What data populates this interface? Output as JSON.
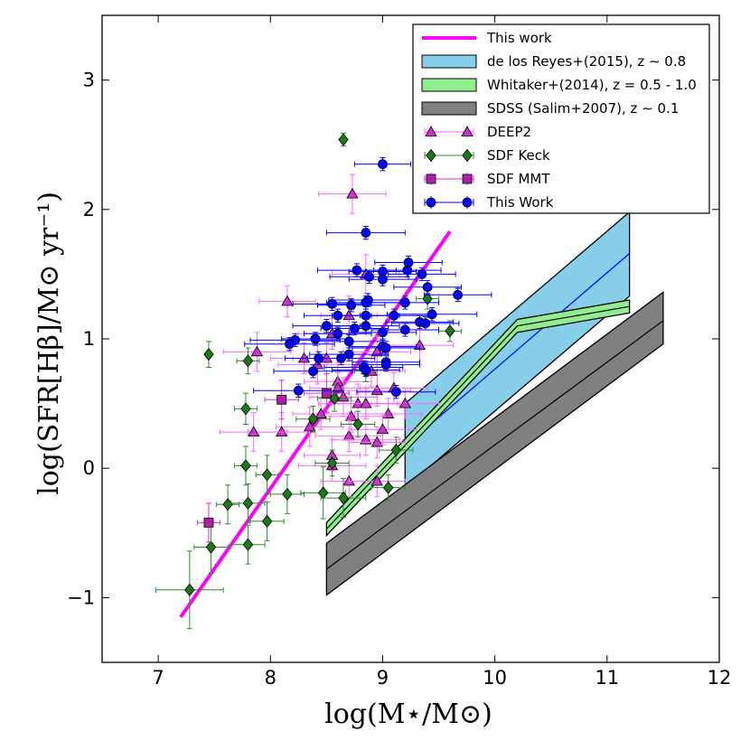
{
  "chart_data": {
    "type": "scatter",
    "xlabel": "log(M⋆/M⊙)",
    "ylabel": "log(SFR[Hβ]/M⊙ yr⁻¹)",
    "xlim": [
      6.5,
      12
    ],
    "ylim": [
      -1.5,
      3.5
    ],
    "x_ticks": [
      7,
      8,
      9,
      10,
      11,
      12
    ],
    "y_ticks": [
      -1,
      0,
      1,
      2,
      3
    ],
    "x_tick_labels": [
      "7",
      "8",
      "9",
      "10",
      "11",
      "12"
    ],
    "y_tick_labels": [
      "−1",
      "0",
      "1",
      "2",
      "3"
    ],
    "grid": false,
    "legend_position": "top-right",
    "colors": {
      "this_work_line": "#ff00ff",
      "reyes": "#87ceeb",
      "whitaker": "#90ee90",
      "sdss": "#808080",
      "deep2": "#cc33cc",
      "sdf_keck": "#1a7a1a",
      "sdf_mmt": "#aa22aa",
      "this_work_points": "#0000ff"
    },
    "legend": [
      {
        "label": "This work",
        "kind": "line",
        "color": "#ff00ff"
      },
      {
        "label": "de los Reyes+(2015), z ∼ 0.8",
        "kind": "band",
        "color": "#87ceeb"
      },
      {
        "label": "Whitaker+(2014), z = 0.5 - 1.0",
        "kind": "band",
        "color": "#90ee90"
      },
      {
        "label": "SDSS (Salim+2007), z ∼ 0.1",
        "kind": "band",
        "color": "#808080"
      },
      {
        "label": "DEEP2",
        "kind": "marker",
        "marker": "triangle",
        "color": "#cc33cc",
        "ecolor": "#ff66ff"
      },
      {
        "label": "SDF Keck",
        "kind": "marker",
        "marker": "diamond",
        "color": "#1a7a1a",
        "ecolor": "#2e8b2e"
      },
      {
        "label": "SDF MMT",
        "kind": "marker",
        "marker": "square",
        "color": "#aa22aa",
        "ecolor": "#cc33cc"
      },
      {
        "label": "This Work",
        "kind": "marker",
        "marker": "circle",
        "color": "#0000ff",
        "ecolor": "#0000ff"
      }
    ],
    "fit_line": {
      "name": "This work",
      "x": [
        7.2,
        9.6
      ],
      "y": [
        -1.15,
        1.83
      ]
    },
    "bands": [
      {
        "name": "de los Reyes+(2015), z ∼ 0.8",
        "color": "#87ceeb",
        "x": [
          9.2,
          11.2
        ],
        "lower": [
          -0.15,
          1.33
        ],
        "upper": [
          0.5,
          1.98
        ],
        "center": [
          0.17,
          1.66
        ]
      },
      {
        "name": "Whitaker+(2014), z = 0.5 - 1.0",
        "color": "#90ee90",
        "x": [
          8.5,
          10.2,
          11.2
        ],
        "lower": [
          -0.52,
          1.05,
          1.2
        ],
        "upper": [
          -0.42,
          1.15,
          1.3
        ],
        "center": [
          -0.47,
          1.1,
          1.25
        ]
      },
      {
        "name": "SDSS (Salim+2007), z ∼ 0.1",
        "color": "#808080",
        "x": [
          8.5,
          11.5
        ],
        "lower": [
          -0.98,
          0.96
        ],
        "upper": [
          -0.58,
          1.36
        ],
        "center": [
          -0.78,
          1.14
        ]
      }
    ],
    "series": [
      {
        "name": "DEEP2",
        "marker": "triangle",
        "color": "#cc33cc",
        "ecolor": "#ff66ff",
        "points": [
          [
            8.73,
            2.12,
            0.3,
            0.15
          ],
          [
            8.15,
            1.29,
            0.25,
            0.12
          ],
          [
            8.55,
            1.04,
            0.3,
            0.12
          ],
          [
            8.7,
            1.18,
            0.25,
            0.15
          ],
          [
            7.88,
            0.9,
            0.3,
            0.15
          ],
          [
            8.42,
            0.8,
            0.35,
            0.15
          ],
          [
            8.6,
            0.67,
            0.3,
            0.15
          ],
          [
            8.65,
            0.55,
            0.3,
            0.15
          ],
          [
            8.78,
            0.5,
            0.35,
            0.15
          ],
          [
            8.85,
            0.5,
            0.3,
            0.12
          ],
          [
            8.95,
            0.6,
            0.3,
            0.12
          ],
          [
            9.1,
            0.62,
            0.3,
            0.12
          ],
          [
            9.2,
            0.5,
            0.3,
            0.12
          ],
          [
            9.33,
            0.95,
            0.3,
            0.15
          ],
          [
            9.05,
            0.42,
            0.3,
            0.12
          ],
          [
            8.72,
            0.4,
            0.3,
            0.12
          ],
          [
            8.7,
            0.25,
            0.3,
            0.12
          ],
          [
            8.85,
            0.22,
            0.3,
            0.12
          ],
          [
            8.95,
            0.2,
            0.25,
            0.12
          ],
          [
            8.55,
            0.02,
            0.3,
            0.12
          ],
          [
            8.35,
            0.32,
            0.3,
            0.15
          ],
          [
            8.1,
            0.28,
            0.3,
            0.15
          ],
          [
            7.85,
            0.28,
            0.3,
            0.15
          ],
          [
            8.55,
            0.1,
            0.25,
            0.12
          ],
          [
            8.7,
            -0.1,
            0.25,
            0.12
          ],
          [
            8.95,
            -0.1,
            0.25,
            0.12
          ],
          [
            8.85,
            1.5,
            0.3,
            0.15
          ],
          [
            8.9,
            0.75,
            0.3,
            0.12
          ],
          [
            8.5,
            0.85,
            0.3,
            0.12
          ],
          [
            8.95,
            0.9,
            0.3,
            0.12
          ],
          [
            8.6,
            0.62,
            0.25,
            0.12
          ],
          [
            8.45,
            0.42,
            0.25,
            0.12
          ],
          [
            9.0,
            0.3,
            0.3,
            0.12
          ],
          [
            8.3,
            0.85,
            0.3,
            0.12
          ]
        ]
      },
      {
        "name": "SDF Keck",
        "marker": "diamond",
        "color": "#1a7a1a",
        "ecolor": "#2e8b2e",
        "points": [
          [
            8.65,
            2.54,
            0.0,
            0.05
          ],
          [
            7.45,
            0.88,
            0.0,
            0.1
          ],
          [
            7.8,
            0.83,
            0.1,
            0.1
          ],
          [
            7.78,
            0.46,
            0.1,
            0.12
          ],
          [
            7.78,
            0.02,
            0.1,
            0.15
          ],
          [
            7.62,
            -0.28,
            0.1,
            0.15
          ],
          [
            7.8,
            -0.27,
            0.15,
            0.15
          ],
          [
            7.97,
            -0.05,
            0.1,
            0.15
          ],
          [
            8.15,
            -0.2,
            0.15,
            0.15
          ],
          [
            7.97,
            -0.41,
            0.15,
            0.15
          ],
          [
            7.8,
            -0.59,
            0.15,
            0.15
          ],
          [
            7.47,
            -0.61,
            0.15,
            0.2
          ],
          [
            7.28,
            -0.94,
            0.3,
            0.3
          ],
          [
            8.47,
            -0.19,
            0.2,
            0.2
          ],
          [
            8.65,
            -0.23,
            0.2,
            0.15
          ],
          [
            8.55,
            0.04,
            0.15,
            0.1
          ],
          [
            8.38,
            0.38,
            0.15,
            0.1
          ],
          [
            8.57,
            0.54,
            0.15,
            0.1
          ],
          [
            8.78,
            0.34,
            0.15,
            0.1
          ],
          [
            8.85,
            0.75,
            0.1,
            0.08
          ],
          [
            9.12,
            0.14,
            0.15,
            0.1
          ],
          [
            9.05,
            -0.15,
            0.15,
            0.1
          ],
          [
            9.4,
            1.31,
            0.1,
            0.08
          ],
          [
            9.6,
            1.06,
            0.1,
            0.08
          ]
        ]
      },
      {
        "name": "SDF MMT",
        "marker": "square",
        "color": "#aa22aa",
        "ecolor": "#cc33cc",
        "points": [
          [
            7.45,
            -0.42,
            0.1,
            0.15
          ],
          [
            8.1,
            0.53,
            0.15,
            0.15
          ],
          [
            8.5,
            0.58,
            0.2,
            0.15
          ]
        ]
      },
      {
        "name": "This Work",
        "marker": "circle",
        "color": "#0000ff",
        "ecolor": "#0000ff",
        "points": [
          [
            9.0,
            2.35,
            0.25,
            0.05
          ],
          [
            8.85,
            1.82,
            0.35,
            0.05
          ],
          [
            9.23,
            1.59,
            0.3,
            0.05
          ],
          [
            8.77,
            1.53,
            0.35,
            0.05
          ],
          [
            8.88,
            1.48,
            0.35,
            0.05
          ],
          [
            9.0,
            1.52,
            0.3,
            0.05
          ],
          [
            9.22,
            1.53,
            0.3,
            0.05
          ],
          [
            9.35,
            1.5,
            0.3,
            0.05
          ],
          [
            9.0,
            1.46,
            0.3,
            0.05
          ],
          [
            9.4,
            1.4,
            0.3,
            0.05
          ],
          [
            9.67,
            1.34,
            0.3,
            0.05
          ],
          [
            8.87,
            1.3,
            0.35,
            0.05
          ],
          [
            8.85,
            1.28,
            0.35,
            0.05
          ],
          [
            8.55,
            1.27,
            0.35,
            0.05
          ],
          [
            8.72,
            1.26,
            0.3,
            0.05
          ],
          [
            9.2,
            1.28,
            0.3,
            0.05
          ],
          [
            8.6,
            1.18,
            0.3,
            0.05
          ],
          [
            8.85,
            1.18,
            0.3,
            0.05
          ],
          [
            9.1,
            1.18,
            0.3,
            0.05
          ],
          [
            9.33,
            1.13,
            0.3,
            0.05
          ],
          [
            9.38,
            1.12,
            0.3,
            0.05
          ],
          [
            9.44,
            1.19,
            0.4,
            0.05
          ],
          [
            8.5,
            1.1,
            0.3,
            0.05
          ],
          [
            8.75,
            1.08,
            0.3,
            0.05
          ],
          [
            8.85,
            1.1,
            0.3,
            0.05
          ],
          [
            9.0,
            1.05,
            0.3,
            0.05
          ],
          [
            9.2,
            1.07,
            0.3,
            0.05
          ],
          [
            8.4,
            1.0,
            0.3,
            0.05
          ],
          [
            8.6,
            1.04,
            0.3,
            0.05
          ],
          [
            8.7,
            0.98,
            0.3,
            0.05
          ],
          [
            9.0,
            0.94,
            0.3,
            0.05
          ],
          [
            8.22,
            0.99,
            0.4,
            0.05
          ],
          [
            8.17,
            0.96,
            0.4,
            0.05
          ],
          [
            8.7,
            0.88,
            0.35,
            0.05
          ],
          [
            9.03,
            0.93,
            0.3,
            0.05
          ],
          [
            8.43,
            0.85,
            0.3,
            0.05
          ],
          [
            8.63,
            0.85,
            0.3,
            0.05
          ],
          [
            8.83,
            0.78,
            0.35,
            0.05
          ],
          [
            9.03,
            0.82,
            0.3,
            0.05
          ],
          [
            8.38,
            0.75,
            0.35,
            0.05
          ],
          [
            8.85,
            0.76,
            0.3,
            0.05
          ],
          [
            9.03,
            0.8,
            0.3,
            0.05
          ],
          [
            8.25,
            0.6,
            0.4,
            0.05
          ],
          [
            9.12,
            0.59,
            0.35,
            0.05
          ]
        ]
      }
    ]
  }
}
